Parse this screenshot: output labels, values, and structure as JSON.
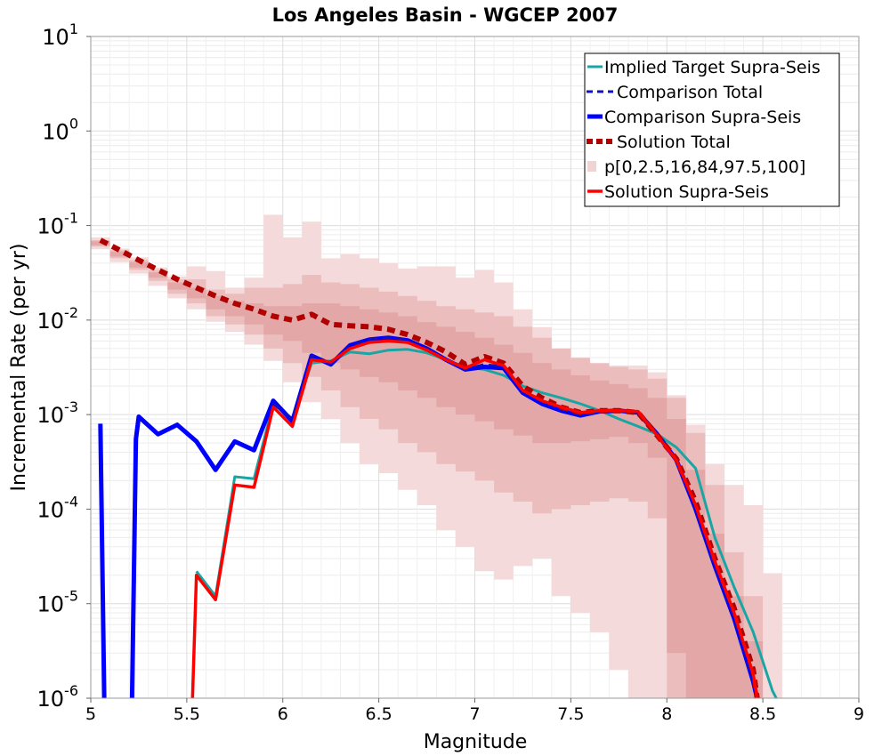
{
  "chart_data": {
    "type": "line",
    "title": "Los Angeles Basin - WGCEP 2007",
    "xlabel": "Magnitude",
    "ylabel": "Incremental Rate (per yr)",
    "xlim": [
      5,
      9
    ],
    "ylim": [
      1e-06,
      10
    ],
    "yscale": "log",
    "grid": true,
    "legend_placement": "top-right",
    "x_ticks": [
      "5",
      "5.5",
      "6",
      "6.5",
      "7",
      "7.5",
      "8",
      "8.5",
      "9"
    ],
    "y_ticks": [
      {
        "base": "10",
        "exp": "1"
      },
      {
        "base": "10",
        "exp": "0"
      },
      {
        "base": "10",
        "exp": "-1"
      },
      {
        "base": "10",
        "exp": "-2"
      },
      {
        "base": "10",
        "exp": "-3"
      },
      {
        "base": "10",
        "exp": "-4"
      },
      {
        "base": "10",
        "exp": "-5"
      },
      {
        "base": "10",
        "exp": "-6"
      }
    ],
    "bands": {
      "name": "p[0,2.5,16,84,97.5,100]",
      "x": [
        5.05,
        5.15,
        5.25,
        5.35,
        5.45,
        5.55,
        5.65,
        5.75,
        5.85,
        5.95,
        6.05,
        6.15,
        6.25,
        6.35,
        6.45,
        6.55,
        6.65,
        6.75,
        6.85,
        6.95,
        7.05,
        7.15,
        7.25,
        7.35,
        7.45,
        7.55,
        7.65,
        7.75,
        7.85,
        7.95,
        8.05,
        8.15,
        8.25,
        8.35,
        8.45,
        8.55
      ],
      "p0_100": [
        [
          0.056,
          0.075
        ],
        [
          0.041,
          0.057
        ],
        [
          0.031,
          0.046
        ],
        [
          0.023,
          0.036
        ],
        [
          0.017,
          0.029
        ],
        [
          0.013,
          0.037
        ],
        [
          0.0096,
          0.033
        ],
        [
          0.0075,
          0.022
        ],
        [
          0.0055,
          0.028
        ],
        [
          0.0037,
          0.13
        ],
        [
          0.0022,
          0.075
        ],
        [
          0.00135,
          0.11
        ],
        [
          0.0009,
          0.045
        ],
        [
          0.0005,
          0.05
        ],
        [
          0.0003,
          0.045
        ],
        [
          0.00024,
          0.04
        ],
        [
          0.00016,
          0.035
        ],
        [
          0.00011,
          0.037
        ],
        [
          6e-05,
          0.037
        ],
        [
          4e-05,
          0.028
        ],
        [
          2.2e-05,
          0.034
        ],
        [
          1.8e-05,
          0.025
        ],
        [
          2.5e-05,
          0.013
        ],
        [
          3e-05,
          0.0084
        ],
        [
          1.2e-05,
          0.0048
        ],
        [
          8e-06,
          0.0036
        ],
        [
          5e-06,
          0.0033
        ],
        [
          2e-06,
          0.0033
        ],
        [
          7e-07,
          0.0033
        ],
        [
          7e-07,
          0.0028
        ],
        [
          7e-07,
          0.0016
        ],
        [
          7e-07,
          0.00078
        ],
        [
          7e-07,
          0.0003
        ],
        [
          7e-07,
          0.00018
        ],
        [
          7e-07,
          0.00011
        ],
        [
          7e-07,
          2.1e-05
        ]
      ],
      "p2_5_97_5": [
        [
          0.06,
          0.07
        ],
        [
          0.045,
          0.055
        ],
        [
          0.034,
          0.043
        ],
        [
          0.026,
          0.034
        ],
        [
          0.019,
          0.027
        ],
        [
          0.015,
          0.027
        ],
        [
          0.011,
          0.021
        ],
        [
          0.009,
          0.019
        ],
        [
          0.007,
          0.022
        ],
        [
          0.005,
          0.022
        ],
        [
          0.0035,
          0.024
        ],
        [
          0.0025,
          0.03
        ],
        [
          0.0018,
          0.025
        ],
        [
          0.0012,
          0.024
        ],
        [
          0.0009,
          0.022
        ],
        [
          0.0007,
          0.02
        ],
        [
          0.0005,
          0.018
        ],
        [
          0.0004,
          0.016
        ],
        [
          0.0003,
          0.014
        ],
        [
          0.00025,
          0.013
        ],
        [
          0.0002,
          0.012
        ],
        [
          0.00015,
          0.011
        ],
        [
          0.00012,
          0.0085
        ],
        [
          9e-05,
          0.0065
        ],
        [
          0.0001,
          0.005
        ],
        [
          0.00011,
          0.004
        ],
        [
          0.00012,
          0.0035
        ],
        [
          0.00013,
          0.0032
        ],
        [
          0.00012,
          0.003
        ],
        [
          8e-05,
          0.0024
        ],
        [
          7e-07,
          0.0015
        ],
        [
          7e-07,
          0.00064
        ],
        [
          7e-07,
          0.00018
        ],
        [
          7e-07,
          3.5e-05
        ],
        [
          7e-07,
          1.2e-05
        ],
        [
          7e-07,
          7e-07
        ]
      ],
      "p16_84": [
        [
          0.062,
          0.068
        ],
        [
          0.047,
          0.053
        ],
        [
          0.036,
          0.041
        ],
        [
          0.028,
          0.032
        ],
        [
          0.021,
          0.025
        ],
        [
          0.017,
          0.022
        ],
        [
          0.013,
          0.018
        ],
        [
          0.011,
          0.016
        ],
        [
          0.009,
          0.015
        ],
        [
          0.007,
          0.014
        ],
        [
          0.006,
          0.014
        ],
        [
          0.0045,
          0.015
        ],
        [
          0.0035,
          0.015
        ],
        [
          0.003,
          0.014
        ],
        [
          0.0025,
          0.013
        ],
        [
          0.0022,
          0.012
        ],
        [
          0.0018,
          0.011
        ],
        [
          0.0015,
          0.0095
        ],
        [
          0.0012,
          0.0085
        ],
        [
          0.001,
          0.0075
        ],
        [
          0.00085,
          0.0065
        ],
        [
          0.0007,
          0.0055
        ],
        [
          0.0006,
          0.0045
        ],
        [
          0.0005,
          0.0035
        ],
        [
          0.0005,
          0.003
        ],
        [
          0.00052,
          0.0026
        ],
        [
          0.00055,
          0.0023
        ],
        [
          0.00058,
          0.0021
        ],
        [
          0.0005,
          0.0019
        ],
        [
          0.00035,
          0.0015
        ],
        [
          3e-06,
          0.0009
        ],
        [
          7e-07,
          0.00026
        ],
        [
          7e-07,
          5.5e-05
        ],
        [
          7e-07,
          1.2e-05
        ],
        [
          7e-07,
          4e-06
        ],
        [
          7e-07,
          7e-07
        ]
      ]
    },
    "series": [
      {
        "name": "Implied Target Supra-Seis",
        "style": "solid-thin",
        "color": "#1aa5a5",
        "x": [
          5.55,
          5.65,
          5.75,
          5.85,
          5.95,
          6.05,
          6.15,
          6.25,
          6.35,
          6.45,
          6.55,
          6.65,
          6.75,
          6.85,
          6.95,
          7.05,
          7.15,
          7.25,
          7.35,
          7.45,
          7.55,
          7.65,
          7.75,
          7.85,
          7.95,
          8.05,
          8.15,
          8.25,
          8.35,
          8.45,
          8.55,
          8.57
        ],
        "values": [
          2.2e-05,
          1.2e-05,
          0.00022,
          0.00021,
          0.0013,
          0.0009,
          0.0035,
          0.0037,
          0.0046,
          0.0044,
          0.0048,
          0.0049,
          0.0045,
          0.0038,
          0.0032,
          0.003,
          0.0026,
          0.002,
          0.0017,
          0.0015,
          0.0013,
          0.0011,
          0.0009,
          0.00075,
          0.00062,
          0.00045,
          0.00027,
          5e-05,
          1.5e-05,
          5e-06,
          1.2e-06,
          1e-06
        ]
      },
      {
        "name": "Comparison Total",
        "style": "dashed-thin",
        "color": "#1010c0",
        "x": [
          5.95,
          6.05,
          6.15,
          6.25,
          6.35,
          6.45,
          6.55,
          6.65,
          6.75,
          6.85,
          6.95,
          7.05,
          7.15,
          7.25,
          7.35,
          7.45,
          7.55,
          7.65,
          7.75,
          7.85,
          7.95,
          8.05,
          8.15,
          8.25,
          8.35,
          8.45,
          8.47
        ],
        "values": [
          0.0013,
          0.0009,
          0.0042,
          0.0035,
          0.0054,
          0.0062,
          0.0065,
          0.0061,
          0.005,
          0.0038,
          0.003,
          0.0034,
          0.0032,
          0.0018,
          0.0014,
          0.00115,
          0.001,
          0.0011,
          0.0011,
          0.00105,
          0.00062,
          0.00033,
          0.0001,
          2.5e-05,
          7e-06,
          1.5e-06,
          1e-06
        ]
      },
      {
        "name": "Comparison Supra-Seis",
        "style": "solid-thick",
        "color": "#0000ff",
        "x": [
          5.05,
          5.07,
          5.13,
          5.215,
          5.235,
          5.25,
          5.35,
          5.45,
          5.55,
          5.65,
          5.75,
          5.85,
          5.95,
          6.05,
          6.15,
          6.25,
          6.35,
          6.45,
          6.55,
          6.65,
          6.75,
          6.85,
          6.95,
          7.05,
          7.15,
          7.25,
          7.35,
          7.45,
          7.55,
          7.65,
          7.75,
          7.85,
          7.95,
          8.05,
          8.15,
          8.25,
          8.35,
          8.45,
          8.47
        ],
        "values": [
          0.0008,
          1e-06,
          null,
          1e-06,
          0.00055,
          0.00095,
          0.00062,
          0.00078,
          0.00052,
          0.00026,
          0.00052,
          0.00042,
          0.0014,
          0.00085,
          0.0042,
          0.0034,
          0.0054,
          0.0062,
          0.0065,
          0.0061,
          0.005,
          0.0038,
          0.003,
          0.0032,
          0.0031,
          0.0017,
          0.0013,
          0.0011,
          0.00098,
          0.00108,
          0.0011,
          0.00105,
          0.00062,
          0.00033,
          0.0001,
          2.5e-05,
          7e-06,
          1.5e-06,
          1e-06
        ]
      },
      {
        "name": "Solution Total",
        "style": "dashed-thick",
        "color": "#b00000",
        "x": [
          5.05,
          5.15,
          5.25,
          5.35,
          5.45,
          5.55,
          5.65,
          5.75,
          5.85,
          5.95,
          6.05,
          6.15,
          6.25,
          6.35,
          6.45,
          6.55,
          6.65,
          6.75,
          6.85,
          6.95,
          7.05,
          7.15,
          7.25,
          7.35,
          7.45,
          7.55,
          7.65,
          7.75,
          7.85,
          7.95,
          8.05,
          8.15,
          8.25,
          8.35,
          8.45,
          8.47
        ],
        "values": [
          0.07,
          0.055,
          0.043,
          0.034,
          0.027,
          0.022,
          0.018,
          0.015,
          0.013,
          0.011,
          0.01,
          0.0115,
          0.009,
          0.0087,
          0.0085,
          0.008,
          0.007,
          0.0058,
          0.0046,
          0.0034,
          0.0041,
          0.0035,
          0.002,
          0.0015,
          0.0012,
          0.00105,
          0.0011,
          0.0011,
          0.00105,
          0.0006,
          0.00034,
          0.00012,
          3e-05,
          9e-06,
          2e-06,
          1e-06
        ]
      },
      {
        "name": "Solution Supra-Seis",
        "style": "solid-medium",
        "color": "#ff0000",
        "x": [
          5.53,
          5.55,
          5.65,
          5.75,
          5.85,
          5.95,
          6.05,
          6.15,
          6.25,
          6.35,
          6.45,
          6.55,
          6.65,
          6.75,
          6.85,
          6.95,
          7.05,
          7.15,
          7.25,
          7.35,
          7.45,
          7.55,
          7.65,
          7.75,
          7.85,
          7.95,
          8.05,
          8.15,
          8.25,
          8.35,
          8.45,
          8.47
        ],
        "values": [
          1e-06,
          2e-05,
          1.1e-05,
          0.00018,
          0.00017,
          0.0012,
          0.00075,
          0.0038,
          0.0036,
          0.005,
          0.0058,
          0.006,
          0.0058,
          0.0048,
          0.0038,
          0.0031,
          0.0038,
          0.0033,
          0.0018,
          0.0014,
          0.0012,
          0.00105,
          0.0011,
          0.0011,
          0.00108,
          0.0006,
          0.00033,
          0.00011,
          2.8e-05,
          8e-06,
          1.8e-06,
          1e-06
        ]
      }
    ],
    "legend": [
      {
        "label": "Implied Target Supra-Seis",
        "kind": "line",
        "style": "solid-thin",
        "color": "#1aa5a5"
      },
      {
        "label": "Comparison Total",
        "kind": "line",
        "style": "dashed-thin",
        "color": "#1010c0"
      },
      {
        "label": "Comparison Supra-Seis",
        "kind": "line",
        "style": "solid-thick",
        "color": "#0000ff"
      },
      {
        "label": "Solution Total",
        "kind": "line",
        "style": "dashed-thick",
        "color": "#b00000"
      },
      {
        "label": "p[0,2.5,16,84,97.5,100]",
        "kind": "band",
        "color": "#f1d3d3"
      },
      {
        "label": "Solution Supra-Seis",
        "kind": "line",
        "style": "solid-medium",
        "color": "#ff0000"
      }
    ]
  }
}
